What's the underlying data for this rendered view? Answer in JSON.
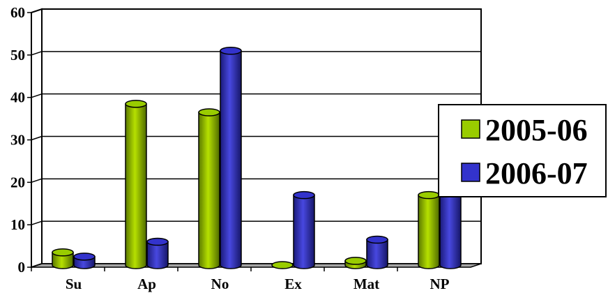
{
  "chart_data": {
    "type": "bar",
    "categories": [
      "Su",
      "Ap",
      "No",
      "Ex",
      "Mat",
      "NP"
    ],
    "series": [
      {
        "name": "2005-06",
        "values": [
          3,
          38,
          36,
          0,
          1,
          16.5
        ],
        "color": "#99cc00"
      },
      {
        "name": "2006-07",
        "values": [
          2,
          5.5,
          50.5,
          16.5,
          6,
          20
        ],
        "color": "#3333cc"
      }
    ],
    "ylim": [
      0,
      60
    ],
    "yticks": [
      "0",
      "10",
      "20",
      "30",
      "40",
      "50",
      "60"
    ],
    "grid": true,
    "legend": "right",
    "style": "3d-cylinder"
  }
}
